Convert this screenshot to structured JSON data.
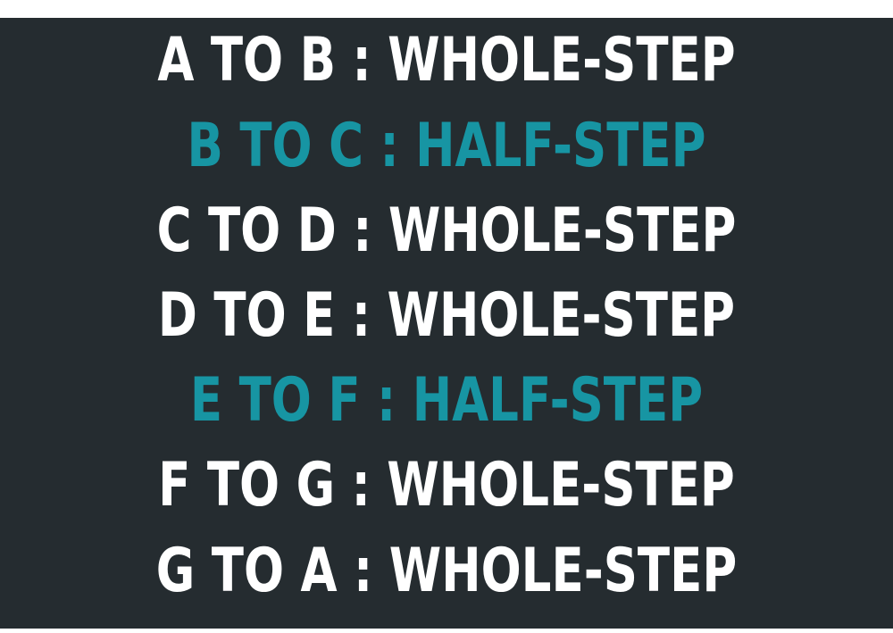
{
  "colors": {
    "background": "#252c30",
    "whole_step": "#ffffff",
    "half_step": "#1795a3"
  },
  "lines": [
    {
      "text": "A TO B : WHOLE-STEP",
      "type": "whole"
    },
    {
      "text": "B TO C : HALF-STEP",
      "type": "half"
    },
    {
      "text": "C TO D : WHOLE-STEP",
      "type": "whole"
    },
    {
      "text": "D TO E : WHOLE-STEP",
      "type": "whole"
    },
    {
      "text": "E TO F : HALF-STEP",
      "type": "half"
    },
    {
      "text": "F TO G : WHOLE-STEP",
      "type": "whole"
    },
    {
      "text": "G TO A : WHOLE-STEP",
      "type": "whole"
    }
  ]
}
